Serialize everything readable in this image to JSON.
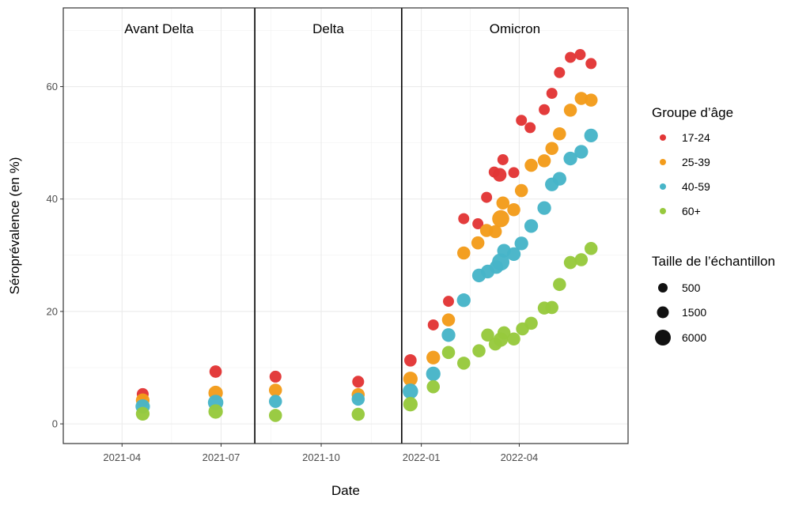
{
  "chart_data": {
    "type": "scatter",
    "xlabel": "Date",
    "ylabel": "Séroprévalence (en %)",
    "x_type": "date",
    "xlim": [
      "2021-02-06",
      "2022-07-10"
    ],
    "ylim": [
      -3.5,
      74
    ],
    "x_ticks": [
      {
        "date": "2021-04-01",
        "label": "2021-04"
      },
      {
        "date": "2021-07-01",
        "label": "2021-07"
      },
      {
        "date": "2021-10-01",
        "label": "2021-10"
      },
      {
        "date": "2022-01-01",
        "label": "2022-01"
      },
      {
        "date": "2022-04-01",
        "label": "2022-04"
      }
    ],
    "y_ticks": [
      0,
      20,
      40,
      60
    ],
    "grid": true,
    "legend_placement": "right",
    "periods": [
      {
        "label": "Avant Delta",
        "start": "2021-02-06",
        "end": "2021-08-01"
      },
      {
        "label": "Delta",
        "start": "2021-08-01",
        "end": "2021-12-14"
      },
      {
        "label": "Omicron",
        "start": "2021-12-14",
        "end": "2022-07-10"
      }
    ],
    "color_legend": {
      "title": "Groupe d’âge",
      "placement": "right"
    },
    "size_legend": {
      "title": "Taille de l’échantillon",
      "entries": [
        {
          "label": "500",
          "value": 500
        },
        {
          "label": "1500",
          "value": 1500
        },
        {
          "label": "6000",
          "value": 6000
        }
      ]
    },
    "series": [
      {
        "name": "17-24",
        "color": "#e23636",
        "points": [
          {
            "x": "2021-04-20",
            "y": 5.3,
            "n": 1000
          },
          {
            "x": "2021-06-26",
            "y": 9.3,
            "n": 1200
          },
          {
            "x": "2021-08-20",
            "y": 8.4,
            "n": 1000
          },
          {
            "x": "2021-11-04",
            "y": 7.5,
            "n": 1000
          },
          {
            "x": "2021-12-22",
            "y": 11.3,
            "n": 1200
          },
          {
            "x": "2022-01-12",
            "y": 17.6,
            "n": 700
          },
          {
            "x": "2022-01-26",
            "y": 21.8,
            "n": 700
          },
          {
            "x": "2022-02-09",
            "y": 36.5,
            "n": 700
          },
          {
            "x": "2022-02-22",
            "y": 35.6,
            "n": 700
          },
          {
            "x": "2022-03-02",
            "y": 40.3,
            "n": 700
          },
          {
            "x": "2022-03-09",
            "y": 44.8,
            "n": 700
          },
          {
            "x": "2022-03-14",
            "y": 44.3,
            "n": 1800
          },
          {
            "x": "2022-03-17",
            "y": 47.0,
            "n": 700
          },
          {
            "x": "2022-03-27",
            "y": 44.7,
            "n": 700
          },
          {
            "x": "2022-04-03",
            "y": 54.0,
            "n": 700
          },
          {
            "x": "2022-04-11",
            "y": 52.7,
            "n": 700
          },
          {
            "x": "2022-04-24",
            "y": 55.9,
            "n": 700
          },
          {
            "x": "2022-05-01",
            "y": 58.8,
            "n": 700
          },
          {
            "x": "2022-05-08",
            "y": 62.5,
            "n": 700
          },
          {
            "x": "2022-05-18",
            "y": 65.2,
            "n": 700
          },
          {
            "x": "2022-05-27",
            "y": 65.7,
            "n": 700
          },
          {
            "x": "2022-06-06",
            "y": 64.1,
            "n": 700
          }
        ]
      },
      {
        "name": "25-39",
        "color": "#f39c1b",
        "points": [
          {
            "x": "2021-04-20",
            "y": 4.2,
            "n": 1800
          },
          {
            "x": "2021-06-26",
            "y": 5.5,
            "n": 2200
          },
          {
            "x": "2021-08-20",
            "y": 6.0,
            "n": 1500
          },
          {
            "x": "2021-11-04",
            "y": 5.2,
            "n": 1500
          },
          {
            "x": "2021-12-22",
            "y": 8.0,
            "n": 2200
          },
          {
            "x": "2022-01-12",
            "y": 11.8,
            "n": 1800
          },
          {
            "x": "2022-01-26",
            "y": 18.5,
            "n": 1500
          },
          {
            "x": "2022-02-09",
            "y": 30.4,
            "n": 1500
          },
          {
            "x": "2022-02-22",
            "y": 32.2,
            "n": 1500
          },
          {
            "x": "2022-03-02",
            "y": 34.4,
            "n": 1500
          },
          {
            "x": "2022-03-10",
            "y": 34.2,
            "n": 1500
          },
          {
            "x": "2022-03-15",
            "y": 36.5,
            "n": 4000
          },
          {
            "x": "2022-03-17",
            "y": 39.3,
            "n": 1500
          },
          {
            "x": "2022-03-27",
            "y": 38.1,
            "n": 1500
          },
          {
            "x": "2022-04-03",
            "y": 41.5,
            "n": 1500
          },
          {
            "x": "2022-04-12",
            "y": 46.0,
            "n": 1500
          },
          {
            "x": "2022-04-24",
            "y": 46.8,
            "n": 1500
          },
          {
            "x": "2022-05-01",
            "y": 49.0,
            "n": 1500
          },
          {
            "x": "2022-05-08",
            "y": 51.6,
            "n": 1500
          },
          {
            "x": "2022-05-18",
            "y": 55.8,
            "n": 1500
          },
          {
            "x": "2022-05-28",
            "y": 57.9,
            "n": 1500
          },
          {
            "x": "2022-06-06",
            "y": 57.6,
            "n": 1500
          }
        ]
      },
      {
        "name": "40-59",
        "color": "#47b5c8",
        "points": [
          {
            "x": "2021-04-20",
            "y": 3.1,
            "n": 2200
          },
          {
            "x": "2021-06-26",
            "y": 3.8,
            "n": 2800
          },
          {
            "x": "2021-08-20",
            "y": 4.0,
            "n": 1500
          },
          {
            "x": "2021-11-04",
            "y": 4.4,
            "n": 1500
          },
          {
            "x": "2021-12-22",
            "y": 5.8,
            "n": 2800
          },
          {
            "x": "2022-01-12",
            "y": 8.9,
            "n": 2200
          },
          {
            "x": "2022-01-26",
            "y": 15.8,
            "n": 1800
          },
          {
            "x": "2022-02-09",
            "y": 22.0,
            "n": 1800
          },
          {
            "x": "2022-02-23",
            "y": 26.4,
            "n": 1800
          },
          {
            "x": "2022-03-03",
            "y": 27.1,
            "n": 1800
          },
          {
            "x": "2022-03-11",
            "y": 27.9,
            "n": 1800
          },
          {
            "x": "2022-03-15",
            "y": 28.8,
            "n": 4200
          },
          {
            "x": "2022-03-18",
            "y": 30.8,
            "n": 1800
          },
          {
            "x": "2022-03-27",
            "y": 30.2,
            "n": 1800
          },
          {
            "x": "2022-04-03",
            "y": 32.1,
            "n": 1800
          },
          {
            "x": "2022-04-12",
            "y": 35.2,
            "n": 1800
          },
          {
            "x": "2022-04-24",
            "y": 38.4,
            "n": 1800
          },
          {
            "x": "2022-05-01",
            "y": 42.6,
            "n": 1800
          },
          {
            "x": "2022-05-08",
            "y": 43.6,
            "n": 1800
          },
          {
            "x": "2022-05-18",
            "y": 47.2,
            "n": 1800
          },
          {
            "x": "2022-05-28",
            "y": 48.4,
            "n": 1800
          },
          {
            "x": "2022-06-06",
            "y": 51.3,
            "n": 1800
          }
        ]
      },
      {
        "name": "60+",
        "color": "#97c93d",
        "points": [
          {
            "x": "2021-04-20",
            "y": 1.8,
            "n": 1800
          },
          {
            "x": "2021-06-26",
            "y": 2.2,
            "n": 2200
          },
          {
            "x": "2021-08-20",
            "y": 1.5,
            "n": 1500
          },
          {
            "x": "2021-11-04",
            "y": 1.7,
            "n": 1500
          },
          {
            "x": "2021-12-22",
            "y": 3.5,
            "n": 2200
          },
          {
            "x": "2022-01-12",
            "y": 6.6,
            "n": 1500
          },
          {
            "x": "2022-01-26",
            "y": 12.7,
            "n": 1500
          },
          {
            "x": "2022-02-09",
            "y": 10.8,
            "n": 1500
          },
          {
            "x": "2022-02-23",
            "y": 13.0,
            "n": 1500
          },
          {
            "x": "2022-03-03",
            "y": 15.8,
            "n": 1500
          },
          {
            "x": "2022-03-10",
            "y": 14.2,
            "n": 1500
          },
          {
            "x": "2022-03-15",
            "y": 15.0,
            "n": 2200
          },
          {
            "x": "2022-03-18",
            "y": 16.2,
            "n": 1500
          },
          {
            "x": "2022-03-27",
            "y": 15.1,
            "n": 1500
          },
          {
            "x": "2022-04-04",
            "y": 16.9,
            "n": 1500
          },
          {
            "x": "2022-04-12",
            "y": 17.9,
            "n": 1500
          },
          {
            "x": "2022-04-24",
            "y": 20.6,
            "n": 1500
          },
          {
            "x": "2022-05-01",
            "y": 20.7,
            "n": 1500
          },
          {
            "x": "2022-05-08",
            "y": 24.8,
            "n": 1500
          },
          {
            "x": "2022-05-18",
            "y": 28.7,
            "n": 1500
          },
          {
            "x": "2022-05-28",
            "y": 29.2,
            "n": 1500
          },
          {
            "x": "2022-06-06",
            "y": 31.2,
            "n": 1500
          }
        ]
      }
    ]
  }
}
